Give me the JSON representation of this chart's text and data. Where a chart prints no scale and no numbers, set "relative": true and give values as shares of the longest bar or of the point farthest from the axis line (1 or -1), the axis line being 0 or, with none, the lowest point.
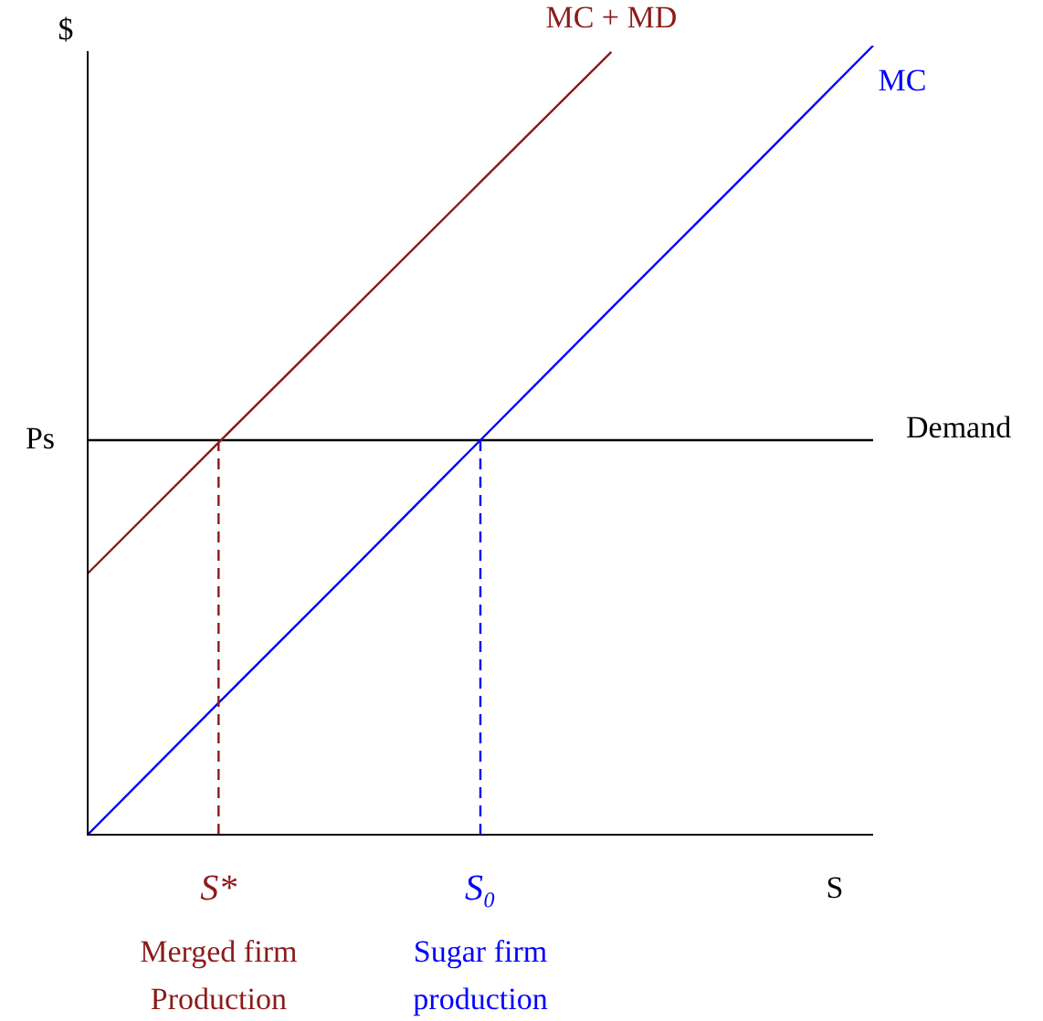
{
  "chart_data": {
    "type": "line",
    "relative": true,
    "xlabel": "S",
    "ylabel": "$",
    "marker": "none",
    "line_style": "solid",
    "categories": [
      null,
      "S*",
      null,
      "S₀",
      null,
      null,
      null
    ],
    "series": [
      {
        "name": "MC + MD",
        "color": "#8b1a1a",
        "values": [
          0.331,
          0.497,
          0.662,
          0.827,
          0.992,
          null,
          null
        ]
      },
      {
        "name": "MC",
        "color": "#0000ff",
        "values": [
          0,
          0.167,
          0.333,
          0.5,
          0.667,
          0.833,
          1
        ]
      },
      {
        "name": "Demand",
        "color": "#000000",
        "values": [
          0.5,
          0.5,
          0.5,
          0.5,
          0.5,
          0.5,
          0.5
        ]
      }
    ],
    "ref_lines": [
      {
        "axis": "x",
        "value": "S*",
        "color": "#8b1a1a",
        "line_style": "dashed"
      },
      {
        "axis": "x",
        "value": "S₀",
        "color": "#0000ff",
        "line_style": "dashed"
      }
    ],
    "annotations": [
      "Ps",
      "Merged firm\nProduction",
      "Sugar firm\nproduction"
    ]
  }
}
